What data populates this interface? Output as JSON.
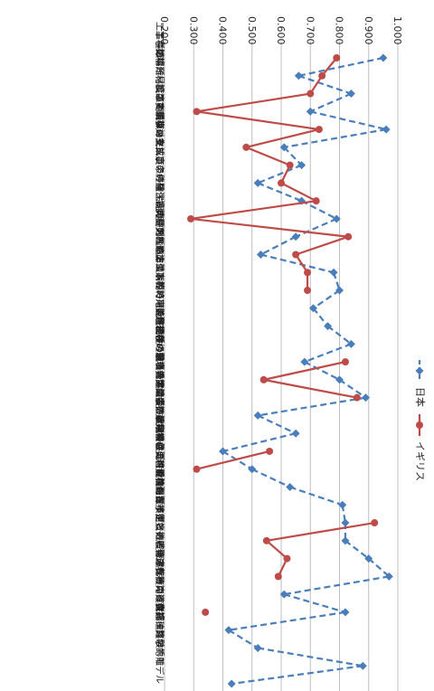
{
  "chart_data": {
    "type": "line",
    "orientation": "rotated-90-clockwise",
    "title": "",
    "xlabel": "",
    "ylabel": "",
    "ylim": [
      0.2,
      1.0
    ],
    "ticks": [
      "0.200",
      "0.300",
      "0.400",
      "0.500",
      "0.600",
      "0.700",
      "0.800",
      "0.900",
      "1.000"
    ],
    "grid": true,
    "legend_position": "right",
    "categories": [
      "工事種類",
      "工事の場所",
      "工事難易度",
      "工期",
      "工事の規模",
      "材料・材料の変動リスク",
      "設計・積算の完成度",
      "工事の支払い条件",
      "マーケットシェアの確保",
      "対象工事の経験・能力",
      "発注者の評判",
      "契約の種類",
      "入札方法",
      "入札の準備期間",
      "入札時期",
      "設計変更・追加工事等の可能性",
      "同種プロジェクトの将来の可能性",
      "競争相手の数",
      "競争相手の競争性",
      "当該工種の過去の実績",
      "過去の経験（元請工事）",
      "現在の市場全体の受注状況",
      "現場労働者の雇用条件",
      "下請けの仕事の必要性",
      "下請け確保の可能性",
      "会社の経営状況・財務目標",
      "手持ち工事量",
      "企業実績の見積もりのタイプと数",
      "資格保有技術者の確保",
      "適切な配置予定技術者の確保",
      "応札費用",
      "一般管理費等の確保",
      "資金調達",
      "直感・経験",
      "発注者積算と自社積算の乖離",
      "積算・数学的モデル"
    ],
    "series": [
      {
        "name": "日本",
        "color": "#4a7ebb",
        "style": "dashed",
        "marker": "diamond",
        "values": [
          0.95,
          0.66,
          0.84,
          0.7,
          0.96,
          0.61,
          0.67,
          0.52,
          0.67,
          0.79,
          0.65,
          0.53,
          0.78,
          0.8,
          0.71,
          0.76,
          0.84,
          0.68,
          0.8,
          0.89,
          0.52,
          0.65,
          0.4,
          0.5,
          0.63,
          0.81,
          0.82,
          0.82,
          0.9,
          0.97,
          0.61,
          0.82,
          0.42,
          0.52,
          0.88,
          0.43
        ]
      },
      {
        "name": "イギリス",
        "color": "#be4b48",
        "style": "solid",
        "marker": "circle",
        "values": [
          0.79,
          0.74,
          0.7,
          0.31,
          0.73,
          0.48,
          0.63,
          0.6,
          0.72,
          0.29,
          0.83,
          0.65,
          0.69,
          0.69,
          null,
          null,
          null,
          0.82,
          0.54,
          0.86,
          null,
          null,
          0.56,
          0.31,
          null,
          null,
          0.92,
          0.55,
          0.62,
          0.59,
          null,
          0.34,
          null,
          null,
          null,
          null
        ]
      }
    ]
  }
}
